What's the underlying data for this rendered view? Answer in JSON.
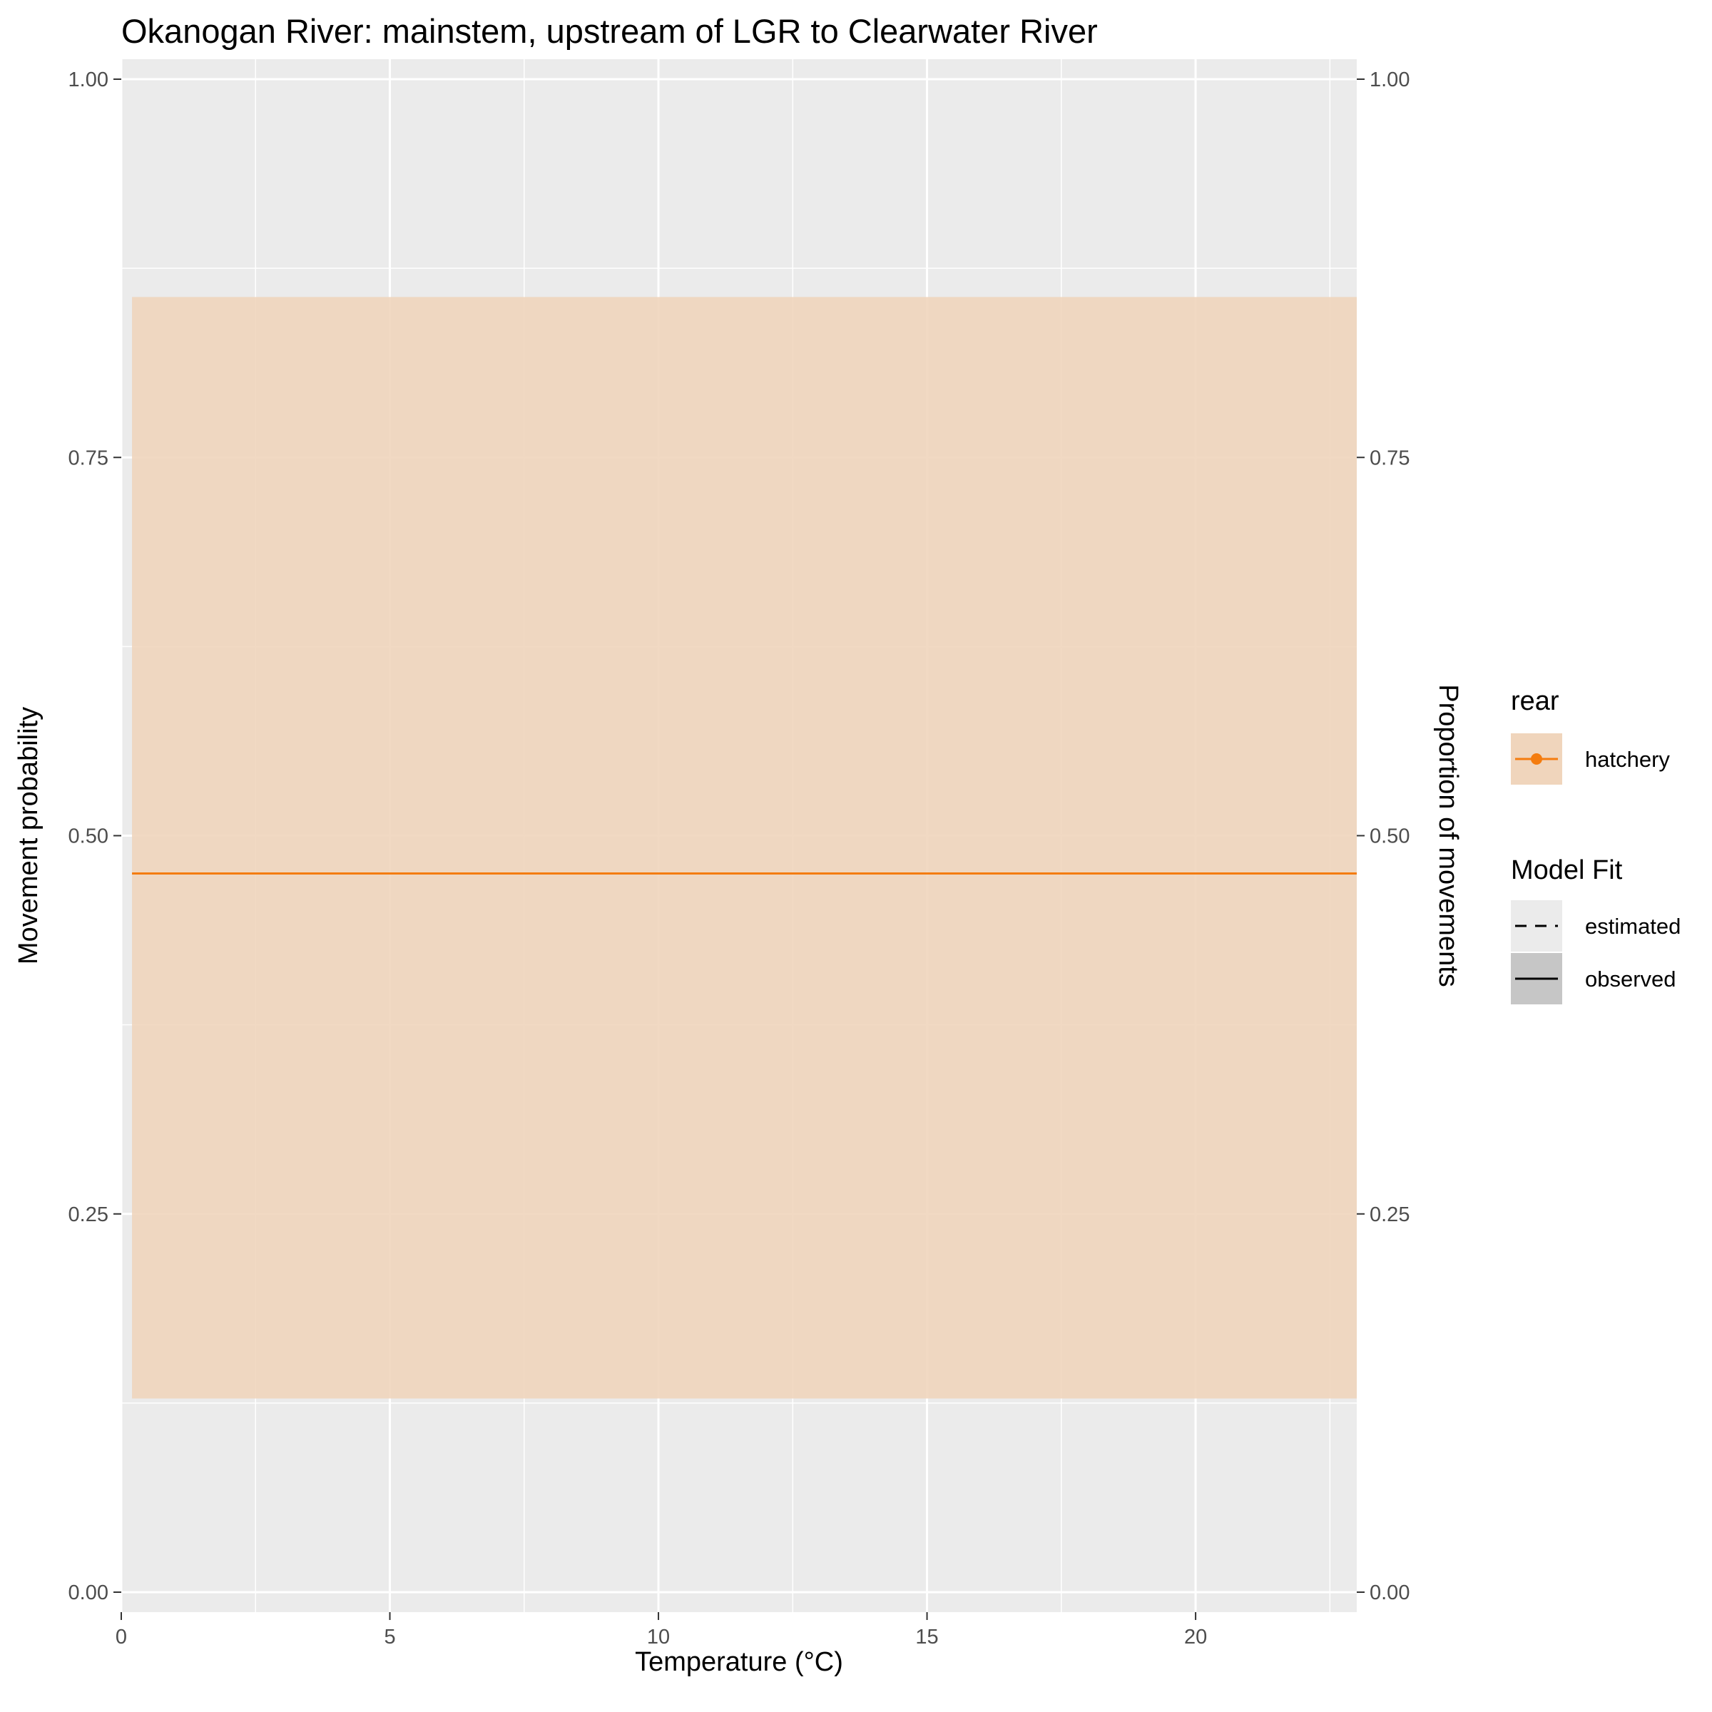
{
  "chart_data": {
    "type": "line",
    "title": "Okanogan River: mainstem, upstream of LGR to Clearwater River",
    "xlabel": "Temperature (°C)",
    "ylabel": "Movement probability",
    "y2label": "Proportion of movements",
    "xlim": [
      0,
      23
    ],
    "ylim": [
      0,
      1
    ],
    "x_ticks": [
      "0",
      "5",
      "10",
      "15",
      "20"
    ],
    "x_tick_values": [
      0,
      5,
      10,
      15,
      20
    ],
    "y_ticks": [
      "0.00",
      "0.25",
      "0.50",
      "0.75",
      "1.00"
    ],
    "y_tick_values": [
      0,
      0.25,
      0.5,
      0.75,
      1
    ],
    "grid": true,
    "legend_position": "right",
    "series": [
      {
        "name": "hatchery",
        "group": "rear",
        "linetype": "observed",
        "x": [
          0.2,
          23
        ],
        "y": [
          0.475,
          0.475
        ],
        "ribbon_lower": [
          0.128,
          0.128
        ],
        "ribbon_upper": [
          0.856,
          0.856
        ],
        "color": "#f47c0f",
        "ribbon_color": "#f0d5bc"
      }
    ],
    "legends": [
      {
        "title": "rear",
        "items": [
          {
            "label": "hatchery",
            "color": "#f47c0f"
          }
        ]
      },
      {
        "title": "Model Fit",
        "items": [
          {
            "label": "estimated",
            "linetype": "dashed"
          },
          {
            "label": "observed",
            "linetype": "solid"
          }
        ]
      }
    ],
    "colors": {
      "panel_bg": "#ebebeb",
      "grid": "#ffffff",
      "line": "#f47c0f",
      "ribbon": "#f0d5bc",
      "legend_ribbon": "#f0d5bc",
      "legend_grey": "#c6c6c6"
    }
  }
}
